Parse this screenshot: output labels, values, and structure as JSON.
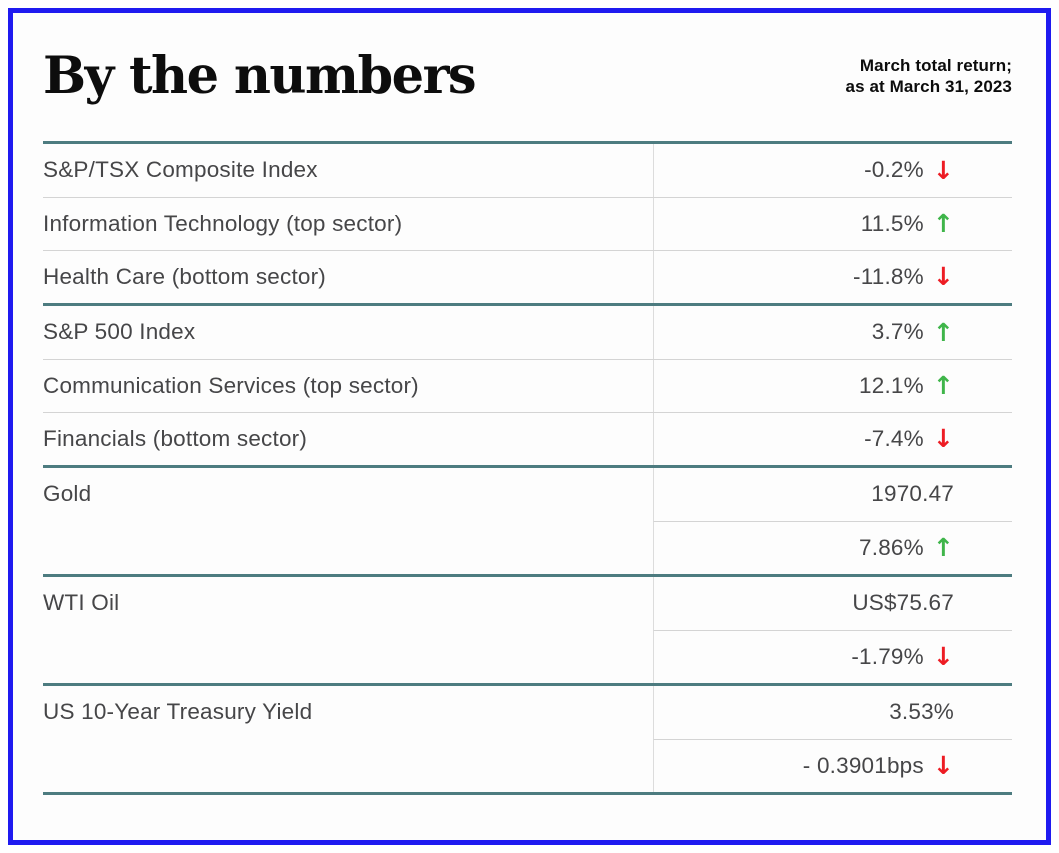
{
  "header": {
    "title": "By the numbers",
    "subtitle_line1": "March total return;",
    "subtitle_line2": "as at March 31, 2023"
  },
  "colors": {
    "blue": "#1f1af0",
    "teal": "#4d7c80",
    "positive": "#3fb54a",
    "negative": "#ed1c24",
    "text": "#464648",
    "hline": "#d4d4d4",
    "vline": "#dcdcdc"
  },
  "chart_data": {
    "type": "table",
    "title": "By the numbers",
    "note": "March total return; as at March 31, 2023",
    "sections": [
      {
        "rows": [
          {
            "label": "S&P/TSX Composite Index",
            "value": "-0.2%",
            "arrow": "↓",
            "dir": "down"
          },
          {
            "label": "Information Technology (top sector)",
            "value": "11.5%",
            "arrow": "↑",
            "dir": "up"
          },
          {
            "label": "Health Care (bottom sector)",
            "value": "-11.8%",
            "arrow": "↓",
            "dir": "down"
          }
        ]
      },
      {
        "rows": [
          {
            "label": "S&P 500 Index",
            "value": "3.7%",
            "arrow": "↑",
            "dir": "up"
          },
          {
            "label": "Communication Services (top sector)",
            "value": "12.1%",
            "arrow": "↑",
            "dir": "up"
          },
          {
            "label": "Financials (bottom sector)",
            "value": "-7.4%",
            "arrow": "↓",
            "dir": "down"
          }
        ]
      },
      {
        "rows": [
          {
            "label": "Gold",
            "value": "1970.47",
            "arrow": "",
            "dir": "none"
          },
          {
            "label": "",
            "value": "7.86%",
            "arrow": "↑",
            "dir": "up"
          }
        ]
      },
      {
        "rows": [
          {
            "label": "WTI Oil",
            "value": "US$75.67",
            "arrow": "",
            "dir": "none"
          },
          {
            "label": "",
            "value": "-1.79%",
            "arrow": "↓",
            "dir": "down"
          }
        ]
      },
      {
        "rows": [
          {
            "label": "US 10-Year Treasury Yield",
            "value": "3.53%",
            "arrow": "",
            "dir": "none"
          },
          {
            "label": "",
            "value": "- 0.3901bps",
            "arrow": "↓",
            "dir": "down"
          }
        ]
      }
    ]
  }
}
